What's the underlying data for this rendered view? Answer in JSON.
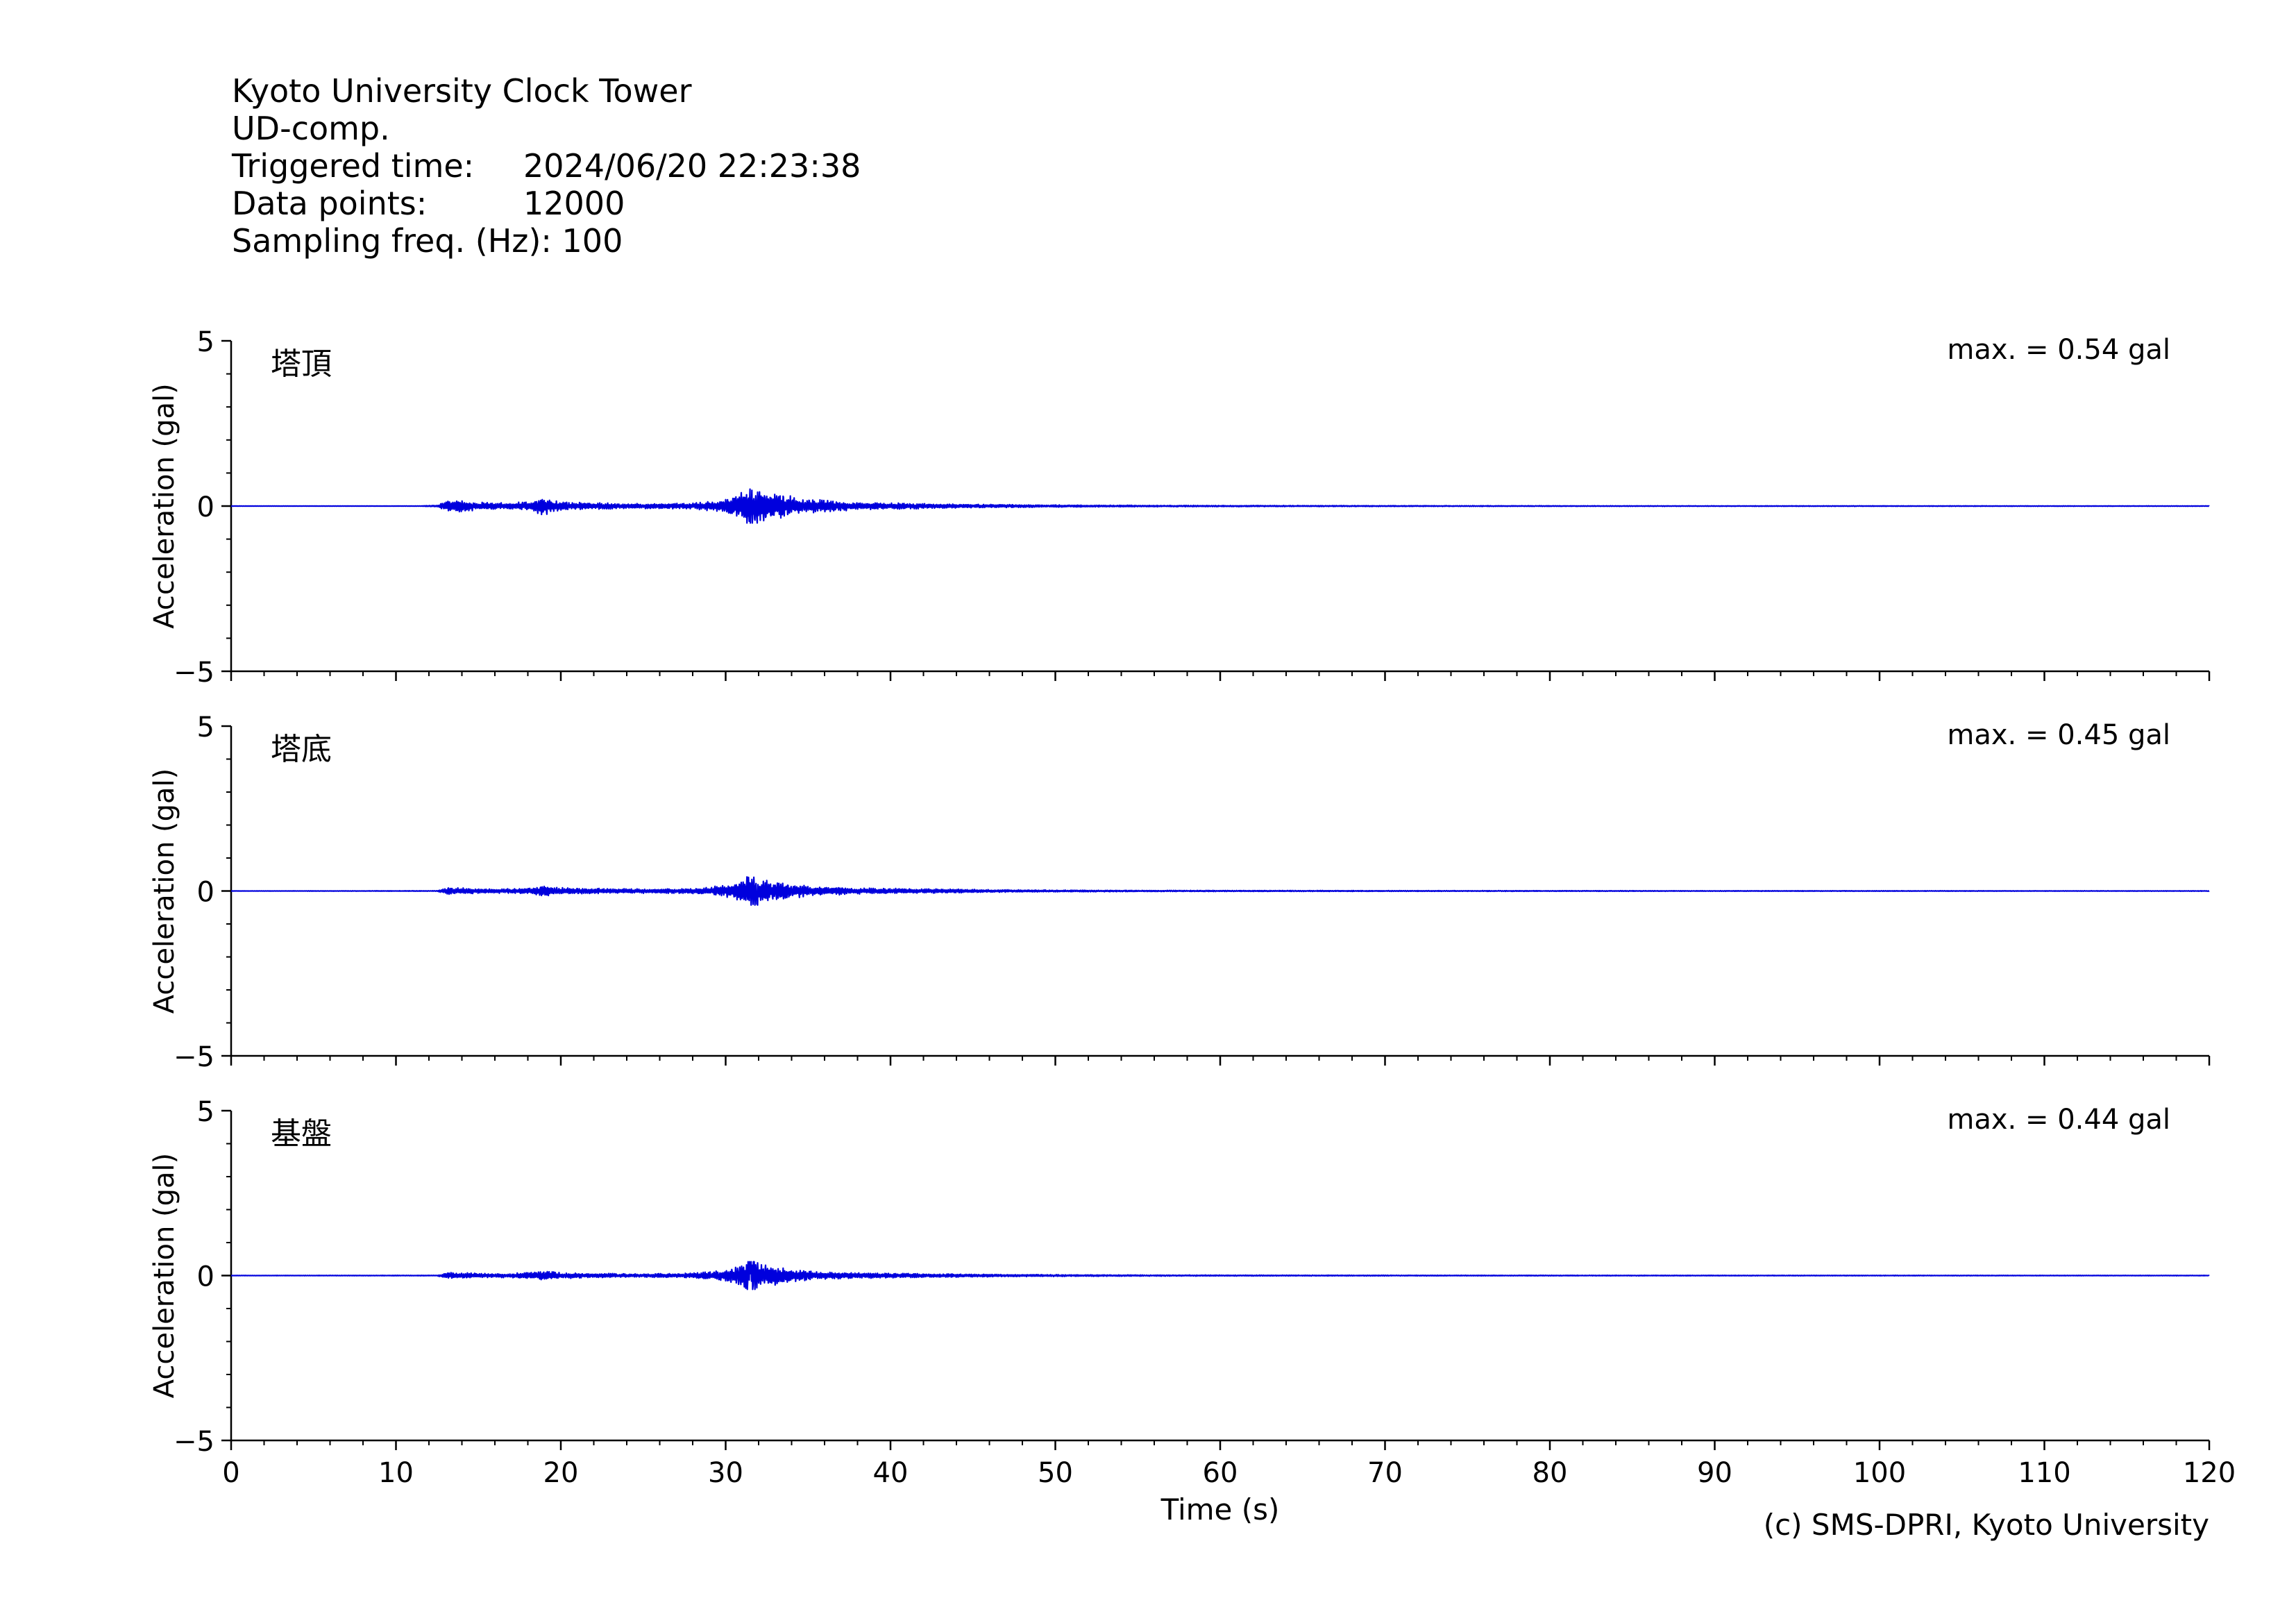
{
  "header": {
    "station": "Kyoto University Clock Tower",
    "component": "UD-comp.",
    "triggered_label": "Triggered time:",
    "triggered_value": "2024/06/20 22:23:38",
    "points_label": "Data points:",
    "points_value": "12000",
    "freq_label": "Sampling freq. (Hz):",
    "freq_value": "100"
  },
  "footer": {
    "credit": "(c) SMS-DPRI, Kyoto University"
  },
  "colors": {
    "trace": "#0000dd",
    "axis": "#000000"
  },
  "chart_data": [
    {
      "type": "line",
      "panel_label": "塔頂",
      "annotation": "max. = 0.54 gal",
      "ylabel": "Acceleration (gal)",
      "xlabel": "",
      "xlim": [
        0,
        120
      ],
      "ylim": [
        -5,
        5
      ],
      "yticks": [
        "5",
        "0",
        "−5"
      ],
      "peak": 0.54,
      "envelope": {
        "x": [
          0,
          11.5,
          12.5,
          13.2,
          14,
          15,
          16,
          17,
          18,
          19,
          20,
          22,
          24,
          26,
          28,
          30,
          31.5,
          32.5,
          34,
          36,
          38,
          40,
          42,
          44,
          46,
          50,
          55,
          60,
          70,
          80,
          90,
          100,
          110,
          120
        ],
        "y": [
          0.005,
          0.005,
          0.03,
          0.2,
          0.18,
          0.12,
          0.1,
          0.1,
          0.14,
          0.28,
          0.13,
          0.1,
          0.08,
          0.08,
          0.09,
          0.2,
          0.54,
          0.45,
          0.3,
          0.18,
          0.12,
          0.1,
          0.08,
          0.06,
          0.05,
          0.035,
          0.025,
          0.02,
          0.015,
          0.012,
          0.01,
          0.01,
          0.008,
          0.008
        ]
      }
    },
    {
      "type": "line",
      "panel_label": "塔底",
      "annotation": "max. = 0.45 gal",
      "ylabel": "Acceleration (gal)",
      "xlabel": "",
      "xlim": [
        0,
        120
      ],
      "ylim": [
        -5,
        5
      ],
      "yticks": [
        "5",
        "0",
        "−5"
      ],
      "peak": 0.45,
      "envelope": {
        "x": [
          0,
          12.5,
          13.2,
          14,
          15,
          16,
          17,
          18,
          19,
          20,
          22,
          24,
          26,
          28,
          30,
          31.5,
          32.5,
          34,
          36,
          38,
          40,
          42,
          44,
          46,
          50,
          55,
          60,
          70,
          80,
          90,
          100,
          110,
          120
        ],
        "y": [
          0.005,
          0.01,
          0.12,
          0.1,
          0.08,
          0.07,
          0.07,
          0.1,
          0.16,
          0.1,
          0.08,
          0.07,
          0.07,
          0.08,
          0.18,
          0.45,
          0.35,
          0.22,
          0.14,
          0.1,
          0.08,
          0.07,
          0.06,
          0.04,
          0.03,
          0.02,
          0.018,
          0.014,
          0.012,
          0.01,
          0.01,
          0.008,
          0.008
        ]
      }
    },
    {
      "type": "line",
      "panel_label": "基盤",
      "annotation": "max. = 0.44 gal",
      "ylabel": "Acceleration (gal)",
      "xlabel": "Time (s)",
      "xlim": [
        0,
        120
      ],
      "ylim": [
        -5,
        5
      ],
      "yticks": [
        "5",
        "0",
        "−5"
      ],
      "xticks": [
        "0",
        "10",
        "20",
        "30",
        "40",
        "50",
        "60",
        "70",
        "80",
        "90",
        "100",
        "110",
        "120"
      ],
      "peak": 0.44,
      "envelope": {
        "x": [
          0,
          12.5,
          13.2,
          14,
          15,
          16,
          17,
          18,
          19,
          20,
          22,
          24,
          26,
          28,
          30,
          31.5,
          32.5,
          34,
          36,
          38,
          40,
          42,
          44,
          46,
          50,
          55,
          60,
          70,
          80,
          90,
          100,
          110,
          120
        ],
        "y": [
          0.005,
          0.01,
          0.1,
          0.09,
          0.07,
          0.06,
          0.07,
          0.1,
          0.15,
          0.09,
          0.07,
          0.06,
          0.06,
          0.08,
          0.18,
          0.44,
          0.34,
          0.2,
          0.12,
          0.09,
          0.07,
          0.06,
          0.05,
          0.04,
          0.03,
          0.02,
          0.016,
          0.013,
          0.011,
          0.01,
          0.009,
          0.008,
          0.008
        ]
      }
    }
  ]
}
